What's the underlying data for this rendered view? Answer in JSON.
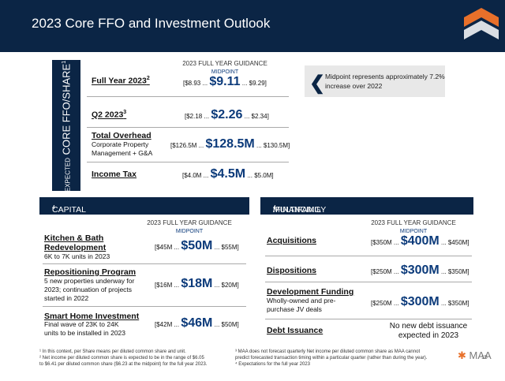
{
  "header": {
    "title": "2023 Core FFO and Investment Outlook"
  },
  "sidebar": {
    "label_small": "EXPECTED",
    "label_main": "CORE FFO/SHARE",
    "label_sup": "1"
  },
  "top": {
    "guidance_header": "2023 FULL YEAR GUIDANCE",
    "midpoint_label": "MIDPOINT",
    "rows": [
      {
        "title": "Full Year 2023",
        "sup": "2",
        "sub": "",
        "low": "[$8.93 ...",
        "mid": "$9.11",
        "high": "... $9.29]"
      },
      {
        "title": "Q2 2023",
        "sup": "3",
        "sub": "",
        "low": "[$2.18 ...",
        "mid": "$2.26",
        "high": "... $2.34]"
      },
      {
        "title": "Total Overhead",
        "sup": "",
        "sub": "Corporate Property Management + G&A",
        "low": "[$126.5M ...",
        "mid": "$128.5M",
        "high": "... $130.5M]"
      },
      {
        "title": "Income Tax",
        "sup": "",
        "sub": "",
        "low": "[$4.0M ...",
        "mid": "$4.5M",
        "high": "... $5.0M]"
      }
    ]
  },
  "callout": {
    "text": "Midpoint represents approximately 7.2% increase over 2022",
    "icon": "chevron-left-icon"
  },
  "capital": {
    "title": "CAPITAL SPEND INITIATIVES",
    "title_sup": "4",
    "guidance_header": "2023 FULL YEAR GUIDANCE",
    "midpoint_label": "MIDPOINT",
    "rows": [
      {
        "title": "Kitchen & Bath Redevelopment",
        "sub": "6K to 7K units in 2023",
        "low": "[$45M ...",
        "mid": "$50M",
        "high": "... $55M]"
      },
      {
        "title": "Repositioning Program",
        "sub": "5 new properties underway for 2023; continuation of projects started in 2022",
        "low": "[$16M ...",
        "mid": "$18M",
        "high": "... $20M]"
      },
      {
        "title": "Smart Home Investment",
        "sub": "Final wave of 23K to 24K units to be installed in 2023",
        "low": "[$42M ...",
        "mid": "$46M",
        "high": "... $50M]"
      }
    ]
  },
  "multifamily": {
    "title": "MULTIFAMILY TRANSACTIONS",
    "title_sup": "4",
    "title_rest": "/FINANCING",
    "guidance_header": "2023 FULL YEAR GUIDANCE",
    "midpoint_label": "MIDPOINT",
    "rows": [
      {
        "title": "Acquisitions",
        "sub": "",
        "low": "[$350M ...",
        "mid": "$400M",
        "high": "... $450M]"
      },
      {
        "title": "Dispositions",
        "sub": "",
        "low": "[$250M ...",
        "mid": "$300M",
        "high": "... $350M]"
      },
      {
        "title": "Development Funding",
        "sub": "Wholly-owned and pre-purchase JV deals",
        "low": "[$250M ...",
        "mid": "$300M",
        "high": "... $350M]"
      },
      {
        "title": "Debt Issuance",
        "sub": "",
        "note": "No new debt issuance expected in 2023"
      }
    ]
  },
  "footnotes": {
    "left": [
      "¹ In this context, per Share means per diluted common share and unit.",
      "² Net income per diluted common share is expected to be in the range of $6.05",
      "  to $6.41 per diluted common share ($6.23 at the midpoint) for the full year 2023."
    ],
    "right": [
      "³ MAA does not forecast quarterly Net income per diluted common share as MAA cannot",
      "  predict forecasted transaction timing within a particular quarter (rather than during the year).",
      "⁴ Expectations for the full year 2023"
    ]
  },
  "brand": {
    "name": "MAA",
    "page": "15",
    "accent": "#e8702a",
    "navy": "#0b2545",
    "mid_color": "#0b3a7a"
  }
}
